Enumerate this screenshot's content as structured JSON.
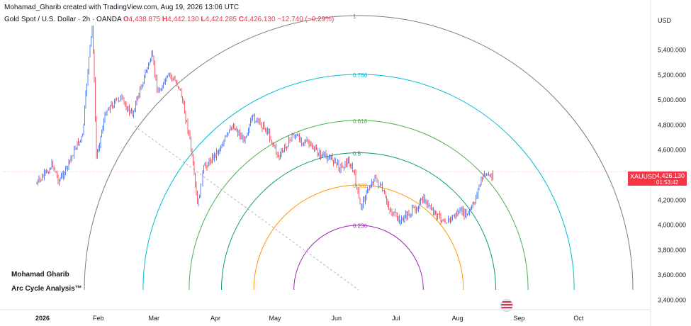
{
  "header": {
    "line1": "Mohamad_Gharib created with TradingView.com, Aug 19, 2026 13:06 UTC",
    "symbol_desc": "Gold Spot / U.S. Dollar · 2h · OANDA",
    "open_label": "O",
    "open": "4,438.875",
    "high_label": "H",
    "high": "4,442.130",
    "low_label": "L",
    "low": "4,424.285",
    "close_label": "C",
    "close": "4,426.130",
    "change": "−12.740 (−0.29%)"
  },
  "price_axis": {
    "unit": "USD",
    "ticks": [
      "5,400.000",
      "5,200.000",
      "5,000.000",
      "4,800.000",
      "4,600.000",
      "4,400.000",
      "4,200.000",
      "4,000.000",
      "3,800.000",
      "3,600.000",
      "3,400.000"
    ]
  },
  "last_price": {
    "symbol": "XAUUSD",
    "price": "4,426.130",
    "countdown": "01:53:42",
    "color": "#f23645"
  },
  "branding": {
    "name": "Mohamad Gharib",
    "tagline": "Arc Cycle Analysis™"
  },
  "chart_data": {
    "type": "candlestick",
    "time_axis": {
      "ticks": [
        "2026",
        "Feb",
        "Mar",
        "Apr",
        "May",
        "Jun",
        "Jul",
        "Aug",
        "Sep",
        "Oct"
      ]
    },
    "price_range": [
      3380,
      5720
    ],
    "path_points": [
      {
        "date": "2026-01-01",
        "price": 4330
      },
      {
        "date": "2026-01-06",
        "price": 4420
      },
      {
        "date": "2026-01-09",
        "price": 4490
      },
      {
        "date": "2026-01-12",
        "price": 4350
      },
      {
        "date": "2026-01-16",
        "price": 4450
      },
      {
        "date": "2026-01-21",
        "price": 4640
      },
      {
        "date": "2026-01-24",
        "price": 4700
      },
      {
        "date": "2026-01-27",
        "price": 5300
      },
      {
        "date": "2026-01-29",
        "price": 5600
      },
      {
        "date": "2026-01-30",
        "price": 5100
      },
      {
        "date": "2026-01-31",
        "price": 4550
      },
      {
        "date": "2026-02-05",
        "price": 4920
      },
      {
        "date": "2026-02-12",
        "price": 5020
      },
      {
        "date": "2026-02-18",
        "price": 4880
      },
      {
        "date": "2026-02-24",
        "price": 5180
      },
      {
        "date": "2026-02-28",
        "price": 5360
      },
      {
        "date": "2026-03-03",
        "price": 5060
      },
      {
        "date": "2026-03-09",
        "price": 5200
      },
      {
        "date": "2026-03-14",
        "price": 5100
      },
      {
        "date": "2026-03-19",
        "price": 4700
      },
      {
        "date": "2026-03-23",
        "price": 4150
      },
      {
        "date": "2026-03-26",
        "price": 4450
      },
      {
        "date": "2026-04-03",
        "price": 4610
      },
      {
        "date": "2026-04-10",
        "price": 4800
      },
      {
        "date": "2026-04-15",
        "price": 4680
      },
      {
        "date": "2026-04-20",
        "price": 4860
      },
      {
        "date": "2026-04-27",
        "price": 4760
      },
      {
        "date": "2026-05-03",
        "price": 4540
      },
      {
        "date": "2026-05-10",
        "price": 4720
      },
      {
        "date": "2026-05-17",
        "price": 4660
      },
      {
        "date": "2026-05-24",
        "price": 4560
      },
      {
        "date": "2026-05-30",
        "price": 4530
      },
      {
        "date": "2026-06-03",
        "price": 4460
      },
      {
        "date": "2026-06-07",
        "price": 4510
      },
      {
        "date": "2026-06-10",
        "price": 4410
      },
      {
        "date": "2026-06-13",
        "price": 4140
      },
      {
        "date": "2026-06-16",
        "price": 4250
      },
      {
        "date": "2026-06-20",
        "price": 4380
      },
      {
        "date": "2026-06-24",
        "price": 4280
      },
      {
        "date": "2026-06-28",
        "price": 4120
      },
      {
        "date": "2026-07-03",
        "price": 4030
      },
      {
        "date": "2026-07-09",
        "price": 4110
      },
      {
        "date": "2026-07-15",
        "price": 4200
      },
      {
        "date": "2026-07-21",
        "price": 4080
      },
      {
        "date": "2026-07-27",
        "price": 4030
      },
      {
        "date": "2026-08-02",
        "price": 4110
      },
      {
        "date": "2026-08-06",
        "price": 4080
      },
      {
        "date": "2026-08-09",
        "price": 4160
      },
      {
        "date": "2026-08-12",
        "price": 4320
      },
      {
        "date": "2026-08-15",
        "price": 4420
      },
      {
        "date": "2026-08-18",
        "price": 4380
      },
      {
        "date": "2026-08-19",
        "price": 4430
      }
    ],
    "fib_arcs": [
      {
        "level": "1",
        "color": "#787b86"
      },
      {
        "level": "0.786",
        "color": "#00bcd4"
      },
      {
        "level": "0.618",
        "color": "#4caf50"
      },
      {
        "level": "0.5",
        "color": "#089981"
      },
      {
        "level": "0.382",
        "color": "#ff9800"
      },
      {
        "level": "0.236",
        "color": "#9c27b0"
      }
    ],
    "series_colors": {
      "up": "#2962ff",
      "down": "#f23645"
    }
  }
}
